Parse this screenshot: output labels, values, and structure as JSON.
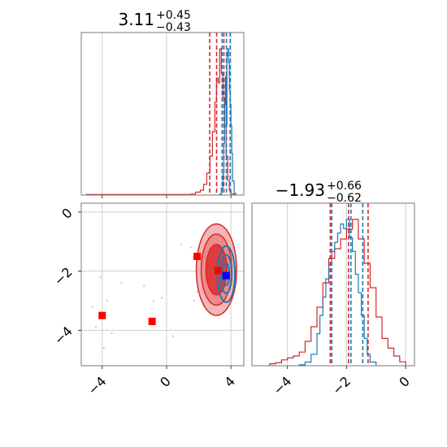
{
  "chart_data": [
    {
      "type": "histogram",
      "panel": "top-left marginal",
      "title_value": "3.11",
      "title_plus": "+0.45",
      "title_minus": "−0.43",
      "xlim": [
        -5.3,
        4.8
      ],
      "grid": true,
      "series": [
        {
          "color": "#d62728",
          "bin_edges": [
            -5.0,
            1.5,
            1.8,
            2.1,
            2.3,
            2.5,
            2.7,
            2.85,
            3.0,
            3.1,
            3.2,
            3.3,
            3.4,
            3.5,
            3.6,
            3.7,
            3.8,
            3.9,
            4.0,
            4.2
          ],
          "counts": [
            1,
            2,
            6,
            10,
            22,
            45,
            80,
            130,
            190,
            240,
            230,
            300,
            250,
            200,
            140,
            80,
            30,
            10,
            2
          ],
          "quantile_lines": [
            2.68,
            3.11,
            3.56
          ]
        },
        {
          "color": "#1f77b4",
          "bin_edges": [
            3.3,
            3.4,
            3.5,
            3.55,
            3.6,
            3.65,
            3.7,
            3.75,
            3.8,
            3.85,
            3.9,
            3.95,
            4.0,
            4.05,
            4.1,
            4.2,
            4.3
          ],
          "counts": [
            2,
            20,
            60,
            150,
            260,
            340,
            200,
            400,
            420,
            380,
            300,
            260,
            200,
            120,
            40,
            5
          ],
          "quantile_lines": [
            3.45,
            3.72,
            3.95
          ]
        }
      ],
      "xticks": [
        -4,
        0,
        4
      ]
    },
    {
      "type": "contour",
      "panel": "bottom-left 2D",
      "xlim": [
        -5.3,
        4.8
      ],
      "ylim": [
        -5.2,
        0.3
      ],
      "grid": true,
      "xticks": [
        -4,
        0,
        4
      ],
      "xtick_labels": [
        "−4",
        "0",
        "4"
      ],
      "yticks": [
        0,
        -2,
        -4
      ],
      "ytick_labels": [
        "0",
        "−2",
        "−4"
      ],
      "red_contours": {
        "color": "#d62728",
        "center": [
          3.1,
          -1.95
        ],
        "radii": [
          [
            1.25,
            1.55
          ],
          [
            0.95,
            1.2
          ],
          [
            0.65,
            0.85
          ]
        ],
        "fills": [
          "#f4b6b6",
          "#ee8a8a",
          "#e03c3c"
        ]
      },
      "blue_contours": {
        "color": "#1f77b4",
        "center": [
          3.7,
          -2.1
        ],
        "radii": [
          [
            0.55,
            0.95
          ],
          [
            0.35,
            0.65
          ],
          [
            0.2,
            0.38
          ]
        ]
      },
      "scatter_pink": [
        [
          -4.6,
          -3.2
        ],
        [
          -4.4,
          -3.9
        ],
        [
          -4.1,
          -2.2
        ],
        [
          -3.9,
          -4.6
        ],
        [
          -3.7,
          -3.0
        ],
        [
          -3.4,
          -4.1
        ],
        [
          -2.8,
          -2.4
        ],
        [
          -1.4,
          -2.5
        ],
        [
          -0.8,
          -3.0
        ],
        [
          -0.3,
          -2.9
        ],
        [
          0.4,
          -4.2
        ],
        [
          0.9,
          -1.1
        ],
        [
          1.5,
          -1.2
        ],
        [
          1.7,
          -3.0
        ],
        [
          1.9,
          -2.7
        ]
      ],
      "markers_red": [
        [
          -4.0,
          -3.5
        ],
        [
          -0.9,
          -3.7
        ],
        [
          1.9,
          -1.5
        ],
        [
          3.2,
          -1.98
        ]
      ],
      "marker_blue": [
        3.7,
        -2.15
      ]
    },
    {
      "type": "histogram",
      "panel": "bottom-right marginal",
      "title_value": "−1.93",
      "title_plus": "+0.66",
      "title_minus": "−0.62",
      "xlim": [
        -5.2,
        0.3
      ],
      "grid": true,
      "xticks": [
        -4,
        -2,
        0
      ],
      "xtick_labels": [
        "−4",
        "−2",
        "0"
      ],
      "series": [
        {
          "color": "#d62728",
          "bin_edges": [
            -4.6,
            -4.4,
            -4.2,
            -4.0,
            -3.8,
            -3.6,
            -3.4,
            -3.2,
            -3.0,
            -2.8,
            -2.6,
            -2.4,
            -2.2,
            -2.0,
            -1.8,
            -1.6,
            -1.4,
            -1.2,
            -1.0,
            -0.8,
            -0.6,
            -0.4,
            -0.2,
            0.0
          ],
          "counts": [
            2,
            3,
            6,
            8,
            10,
            14,
            25,
            40,
            60,
            85,
            110,
            120,
            130,
            140,
            150,
            130,
            105,
            80,
            50,
            28,
            18,
            10,
            4
          ],
          "quantile_lines": [
            -2.55,
            -1.93,
            -1.27
          ]
        },
        {
          "color": "#1f77b4",
          "bin_edges": [
            -3.6,
            -3.4,
            -3.2,
            -3.0,
            -2.9,
            -2.8,
            -2.7,
            -2.6,
            -2.5,
            -2.4,
            -2.3,
            -2.2,
            -2.1,
            -2.0,
            -1.9,
            -1.8,
            -1.7,
            -1.6,
            -1.5,
            -1.4,
            -1.3,
            -1.2,
            -1.0
          ],
          "counts": [
            2,
            8,
            25,
            70,
            110,
            150,
            190,
            220,
            250,
            270,
            290,
            310,
            300,
            320,
            280,
            250,
            200,
            160,
            110,
            60,
            25,
            8
          ],
          "quantile_lines": [
            -2.5,
            -1.85,
            -1.45
          ]
        }
      ]
    }
  ]
}
